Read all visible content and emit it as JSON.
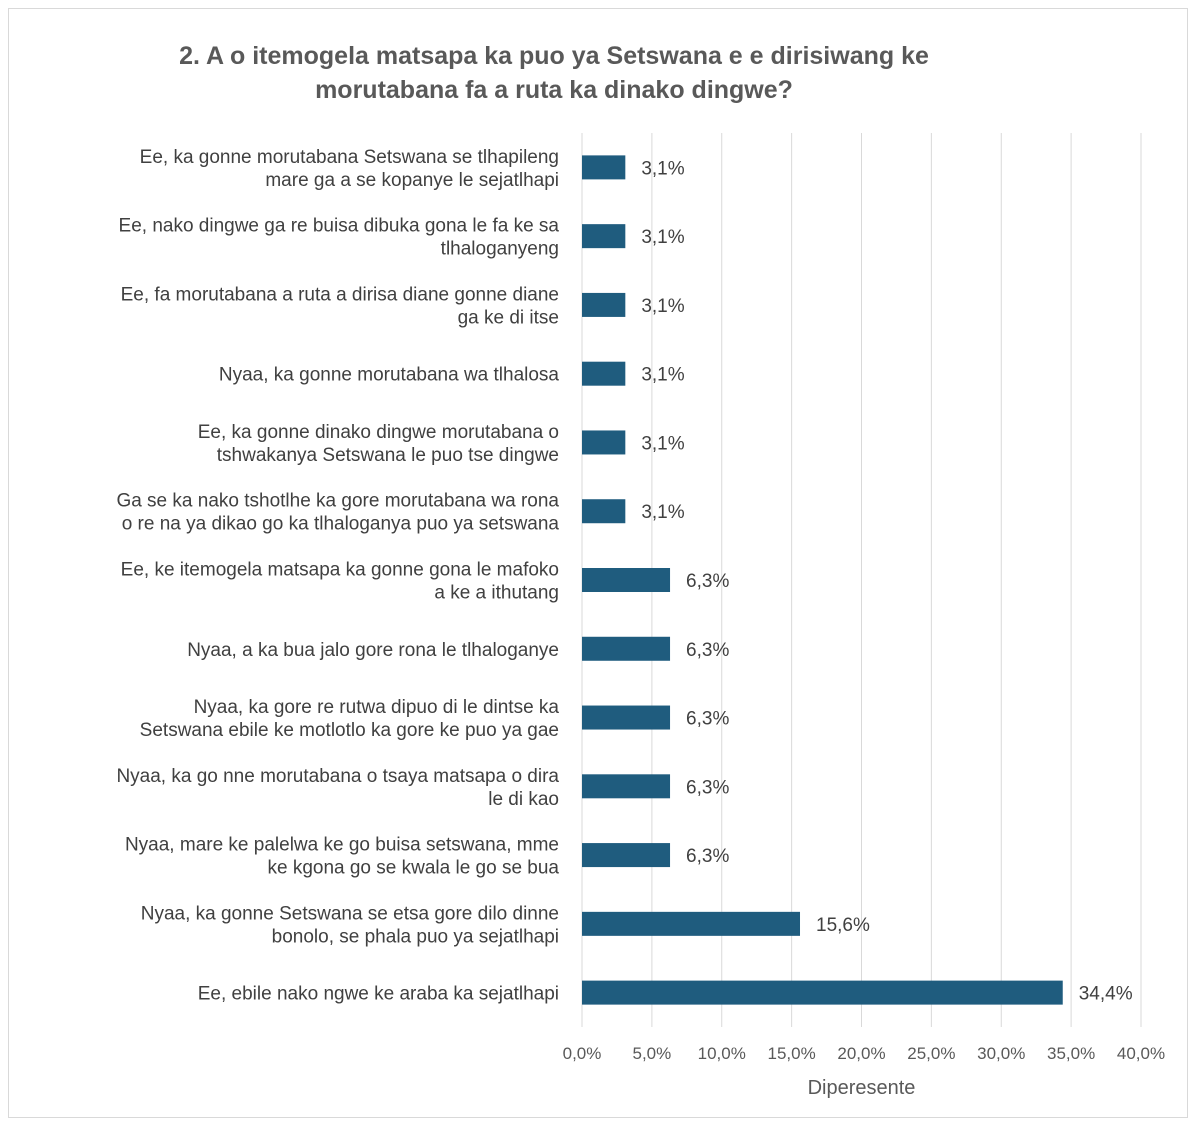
{
  "chart_data": {
    "type": "bar",
    "orientation": "horizontal",
    "title_lines": [
      "2. A o itemogela matsapa ka puo ya Setswana e e dirisiwang ke",
      "morutabana fa a ruta ka dinako dingwe?"
    ],
    "categories": [
      [
        "Ee, ka gonne morutabana Setswana se tlhapileng",
        "mare ga a se kopanye le sejatlhapi"
      ],
      [
        "Ee, nako dingwe ga re buisa dibuka gona le fa ke sa",
        "tlhaloganyeng"
      ],
      [
        "Ee, fa morutabana a ruta a dirisa diane gonne diane",
        "ga ke di itse"
      ],
      [
        "Nyaa, ka gonne morutabana wa tlhalosa"
      ],
      [
        "Ee, ka gonne dinako dingwe morutabana o",
        "tshwakanya Setswana le puo tse dingwe"
      ],
      [
        "Ga se ka nako tshotlhe ka gore morutabana wa rona",
        "o re na ya dikao go ka tlhaloganya puo ya setswana"
      ],
      [
        "Ee, ke itemogela matsapa ka gonne gona le mafoko",
        "a ke a ithutang"
      ],
      [
        "Nyaa, a ka bua jalo gore rona le tlhaloganye"
      ],
      [
        "Nyaa, ka gore re rutwa dipuo di le dintse ka",
        "Setswana ebile ke motlotlo ka gore ke puo ya gae"
      ],
      [
        "Nyaa, ka go nne morutabana o tsaya matsapa o dira",
        "le di kao"
      ],
      [
        "Nyaa, mare ke palelwa ke go buisa setswana, mme",
        "ke kgona go se kwala le go se bua"
      ],
      [
        "Nyaa, ka gonne Setswana se etsa gore dilo dinne",
        "bonolo, se phala puo ya sejatlhapi"
      ],
      [
        "Ee, ebile nako ngwe ke araba ka sejatlhapi"
      ]
    ],
    "values": [
      3.1,
      3.1,
      3.1,
      3.1,
      3.1,
      3.1,
      6.3,
      6.3,
      6.3,
      6.3,
      6.3,
      15.6,
      34.4
    ],
    "value_labels": [
      "3,1%",
      "3,1%",
      "3,1%",
      "3,1%",
      "3,1%",
      "3,1%",
      "6,3%",
      "6,3%",
      "6,3%",
      "6,3%",
      "6,3%",
      "15,6%",
      "34,4%"
    ],
    "xlim": [
      0,
      40
    ],
    "x_ticks": [
      0,
      5,
      10,
      15,
      20,
      25,
      30,
      35,
      40
    ],
    "x_tick_labels": [
      "0,0%",
      "5,0%",
      "10,0%",
      "15,0%",
      "20,0%",
      "25,0%",
      "30,0%",
      "35,0%",
      "40,0%"
    ],
    "xlabel": "Diperesente",
    "ylabel": "",
    "grid": "vertical",
    "legend": "none",
    "bar_color": "#1f5c7e",
    "gridline_color": "#d9d9d9"
  }
}
